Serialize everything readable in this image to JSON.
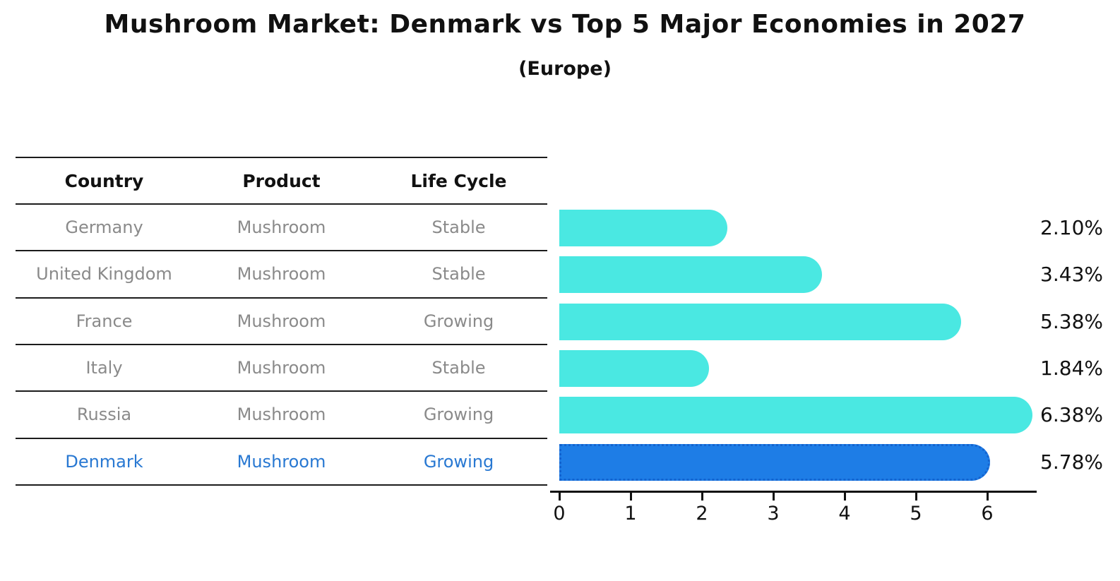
{
  "title": "Mushroom Market: Denmark vs Top 5 Major Economies in 2027",
  "subtitle": "(Europe)",
  "table": {
    "columns": [
      "Country",
      "Product",
      "Life Cycle"
    ],
    "rows": [
      {
        "country": "Germany",
        "product": "Mushroom",
        "life_cycle": "Stable",
        "highlight": false
      },
      {
        "country": "United Kingdom",
        "product": "Mushroom",
        "life_cycle": "Stable",
        "highlight": false
      },
      {
        "country": "France",
        "product": "Mushroom",
        "life_cycle": "Growing",
        "highlight": false
      },
      {
        "country": "Italy",
        "product": "Mushroom",
        "life_cycle": "Stable",
        "highlight": false
      },
      {
        "country": "Russia",
        "product": "Mushroom",
        "life_cycle": "Growing",
        "highlight": false
      },
      {
        "country": "Denmark",
        "product": "Mushroom",
        "life_cycle": "Growing",
        "highlight": true
      }
    ]
  },
  "chart_data": {
    "type": "bar",
    "orientation": "horizontal",
    "title": "Mushroom Market: Denmark vs Top 5 Major Economies in 2027",
    "subtitle": "(Europe)",
    "categories": [
      "Germany",
      "United Kingdom",
      "France",
      "Italy",
      "Russia",
      "Denmark"
    ],
    "values": [
      2.1,
      3.43,
      5.38,
      1.84,
      6.38,
      5.78
    ],
    "value_labels": [
      "2.10%",
      "3.43%",
      "5.38%",
      "1.84%",
      "6.38%",
      "5.78%"
    ],
    "x_ticks": [
      0,
      1,
      2,
      3,
      4,
      5,
      6
    ],
    "xlim": [
      0,
      6.7
    ],
    "grid": false,
    "legend": "none",
    "highlight_category": "Denmark",
    "bar_color": "#4ae8e2",
    "highlight_bar_color": "#1e7de6",
    "highlight_text_color": "#2878d2",
    "text_color": "#111111",
    "muted_text_color": "#8a8a8a"
  }
}
